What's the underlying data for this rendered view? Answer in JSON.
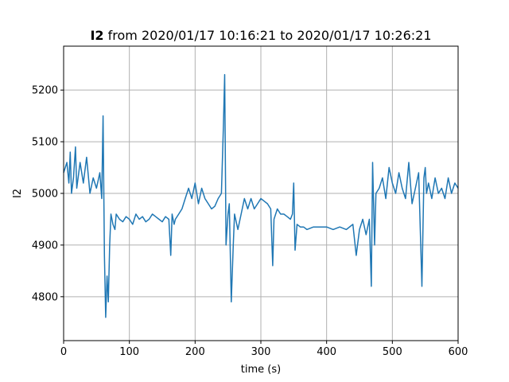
{
  "chart_data": {
    "type": "line",
    "title": {
      "bold_part": "I2",
      "rest": " from 2020/01/17 10:16:21 to 2020/01/17 10:26:21"
    },
    "xlabel": "time (s)",
    "ylabel": "I2",
    "xlim": [
      0,
      600
    ],
    "ylim": [
      4715,
      5285
    ],
    "xticks": [
      0,
      100,
      200,
      300,
      400,
      500,
      600
    ],
    "yticks": [
      4800,
      4900,
      5000,
      5100,
      5200
    ],
    "grid": true,
    "legend": "none",
    "colors": {
      "line": "#1f77b4",
      "grid": "#b0b0b0"
    },
    "series": [
      {
        "x": [
          0,
          5,
          8,
          10,
          12,
          15,
          18,
          20,
          25,
          30,
          35,
          40,
          45,
          50,
          55,
          58,
          60,
          62,
          64,
          66,
          68,
          70,
          72,
          75,
          78,
          80,
          85,
          90,
          95,
          100,
          105,
          110,
          115,
          120,
          125,
          130,
          135,
          140,
          145,
          150,
          155,
          160,
          163,
          165,
          168,
          170,
          175,
          180,
          185,
          190,
          195,
          200,
          205,
          210,
          215,
          220,
          225,
          230,
          235,
          240,
          243,
          245,
          247,
          250,
          252,
          255,
          258,
          260,
          265,
          270,
          275,
          280,
          285,
          290,
          295,
          300,
          305,
          310,
          315,
          318,
          320,
          325,
          330,
          335,
          340,
          345,
          348,
          350,
          352,
          355,
          360,
          365,
          370,
          380,
          390,
          400,
          410,
          420,
          430,
          440,
          445,
          450,
          455,
          460,
          465,
          468,
          470,
          473,
          475,
          480,
          485,
          490,
          495,
          500,
          505,
          510,
          515,
          520,
          525,
          530,
          535,
          540,
          545,
          548,
          550,
          552,
          555,
          560,
          565,
          570,
          575,
          580,
          585,
          590,
          595,
          600
        ],
        "y": [
          5040,
          5060,
          5020,
          5080,
          5000,
          5030,
          5090,
          5010,
          5060,
          5020,
          5070,
          5000,
          5030,
          5010,
          5040,
          4990,
          5150,
          4880,
          4760,
          4840,
          4790,
          4900,
          4960,
          4940,
          4930,
          4960,
          4950,
          4945,
          4955,
          4950,
          4940,
          4960,
          4950,
          4955,
          4945,
          4950,
          4960,
          4955,
          4950,
          4945,
          4955,
          4950,
          4880,
          4960,
          4940,
          4950,
          4960,
          4970,
          4990,
          5010,
          4990,
          5020,
          4980,
          5010,
          4990,
          4980,
          4970,
          4975,
          4990,
          5000,
          5130,
          5230,
          4900,
          4960,
          4980,
          4790,
          4900,
          4960,
          4930,
          4960,
          4990,
          4970,
          4990,
          4970,
          4980,
          4990,
          4985,
          4980,
          4970,
          4860,
          4950,
          4970,
          4960,
          4960,
          4955,
          4950,
          4960,
          5020,
          4890,
          4940,
          4935,
          4935,
          4930,
          4935,
          4935,
          4935,
          4930,
          4935,
          4930,
          4940,
          4880,
          4930,
          4950,
          4920,
          4950,
          4820,
          5060,
          4900,
          5000,
          5010,
          5030,
          4990,
          5050,
          5020,
          5000,
          5040,
          5010,
          4990,
          5060,
          4980,
          5010,
          5040,
          4820,
          5030,
          5050,
          5000,
          5020,
          4990,
          5030,
          5000,
          5010,
          4990,
          5030,
          5000,
          5020,
          5010
        ]
      }
    ]
  }
}
